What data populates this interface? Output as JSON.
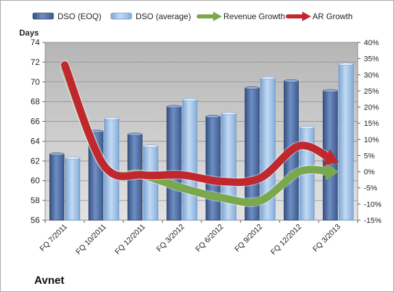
{
  "chart_data": {
    "type": "bar",
    "title": "Avnet",
    "ylabel": "Days",
    "ylim": [
      56,
      74
    ],
    "y2lim": [
      -15,
      40
    ],
    "y_ticks": [
      "56",
      "58",
      "60",
      "62",
      "64",
      "66",
      "68",
      "70",
      "72",
      "74"
    ],
    "y2_ticks": [
      "-15%",
      "-10%",
      "-5%",
      "0%",
      "5%",
      "10%",
      "15%",
      "20%",
      "25%",
      "30%",
      "35%",
      "40%"
    ],
    "categories": [
      "FQ 7/2011",
      "FQ 10/2011",
      "FQ 12/2011",
      "FQ 3/2012",
      "FQ 6/2012",
      "FQ 9/2012",
      "FQ 12/2012",
      "FQ 3/2013"
    ],
    "series": [
      {
        "name": "DSO (EOQ)",
        "values": [
          62.7,
          65.0,
          64.7,
          67.5,
          66.5,
          69.4,
          70.1,
          69.1
        ],
        "color": "#4f6fa8"
      },
      {
        "name": "DSO (average)",
        "values": [
          62.3,
          66.3,
          63.5,
          68.2,
          66.8,
          70.4,
          65.4,
          71.8
        ],
        "color": "#9dbfe6"
      },
      {
        "name": "Revenue Growth",
        "values": [
          32,
          2,
          -1,
          -5,
          -8,
          -9,
          0,
          0
        ],
        "color": "#7aa84f",
        "axis": "right"
      },
      {
        "name": "AR Growth",
        "values": [
          33,
          2,
          -1,
          -1,
          -3,
          -2,
          8,
          3
        ],
        "color": "#c0282d",
        "axis": "right"
      }
    ],
    "grid": true,
    "legend_position": "top"
  }
}
